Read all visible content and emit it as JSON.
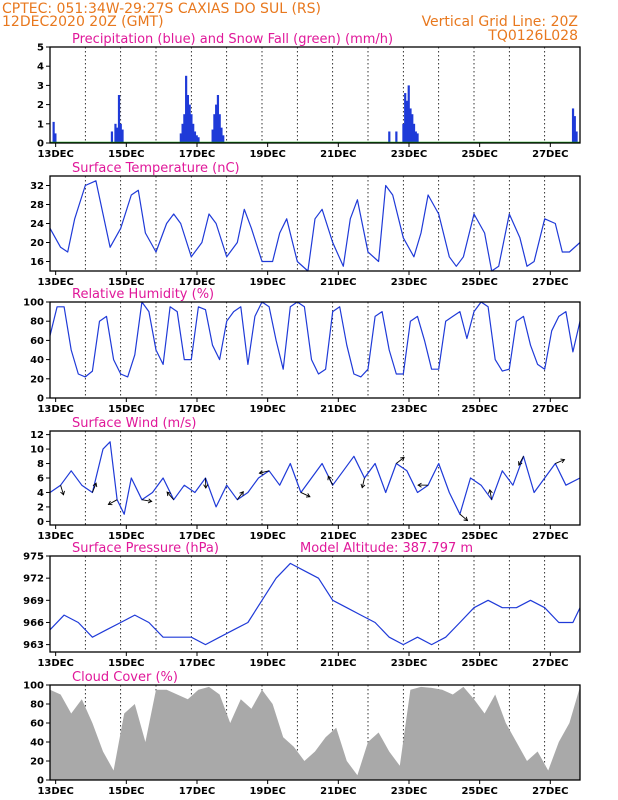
{
  "header": {
    "line1": "CPTEC:  051:34W-29:27S  CAXIAS DO SUL (RS)",
    "line2_left": "12DEC2020 20Z (GMT)",
    "line2_right": "Vertical Grid Line: 20Z",
    "line3_right": "TQ0126L028"
  },
  "colors": {
    "header": "#e8781e",
    "title": "#e0189a",
    "series_line": "#1f3ad8",
    "precip": "#1f3ad8",
    "snow": "#18a018",
    "cloud": "#a9a9a9"
  },
  "chart_data": [
    {
      "type": "bar",
      "title": "Precipitation (blue) and Snow Fall (green) (mm/h)",
      "x_ticks": [
        "13DEC",
        "15DEC",
        "17DEC",
        "19DEC",
        "21DEC",
        "23DEC",
        "25DEC",
        "27DEC"
      ],
      "xlim": [
        "12DEC2020 20Z",
        "27DEC2020 20Z"
      ],
      "ylim": [
        0,
        5
      ],
      "y_ticks": [
        "0",
        "1",
        "2",
        "3",
        "4",
        "5"
      ],
      "series": [
        {
          "name": "Precipitation",
          "x_day": [
            0.1,
            0.15,
            1.75,
            1.85,
            1.9,
            1.95,
            2.0,
            2.05,
            3.7,
            3.75,
            3.8,
            3.85,
            3.9,
            3.95,
            4.0,
            4.05,
            4.1,
            4.15,
            4.2,
            4.6,
            4.65,
            4.7,
            4.75,
            4.8,
            4.85,
            4.9,
            9.6,
            9.8,
            10.0,
            10.05,
            10.1,
            10.15,
            10.2,
            10.25,
            10.3,
            10.35,
            10.4,
            14.8,
            14.85,
            14.9
          ],
          "values": [
            1.1,
            0.5,
            0.6,
            1.0,
            0.8,
            2.5,
            1.0,
            0.7,
            0.5,
            1.0,
            1.5,
            3.5,
            2.5,
            2.0,
            1.5,
            1.0,
            0.6,
            0.4,
            0.3,
            0.7,
            1.5,
            2.0,
            2.5,
            1.5,
            0.8,
            0.4,
            0.6,
            0.6,
            1.0,
            2.6,
            2.2,
            3.0,
            1.8,
            1.5,
            1.0,
            0.6,
            0.5,
            1.8,
            1.4,
            0.6
          ]
        },
        {
          "name": "Snow Fall",
          "x_day": [
            1.3,
            6.0,
            9.1,
            12.5
          ],
          "values": [
            0.05,
            0.05,
            0.05,
            0.05
          ]
        }
      ]
    },
    {
      "type": "line",
      "title": "Surface Temperature (nC)",
      "x_ticks": [
        "13DEC",
        "15DEC",
        "17DEC",
        "19DEC",
        "21DEC",
        "23DEC",
        "25DEC",
        "27DEC"
      ],
      "ylim": [
        14,
        34
      ],
      "y_ticks": [
        "16",
        "20",
        "24",
        "28",
        "32"
      ],
      "x_day": [
        0,
        0.3,
        0.5,
        0.7,
        1.0,
        1.3,
        1.5,
        1.7,
        2.0,
        2.3,
        2.5,
        2.7,
        3.0,
        3.3,
        3.5,
        3.7,
        4.0,
        4.3,
        4.5,
        4.7,
        5.0,
        5.3,
        5.5,
        5.7,
        6.0,
        6.3,
        6.5,
        6.7,
        7.0,
        7.3,
        7.5,
        7.7,
        8.0,
        8.3,
        8.5,
        8.7,
        9.0,
        9.3,
        9.5,
        9.7,
        10.0,
        10.3,
        10.5,
        10.7,
        11.0,
        11.3,
        11.5,
        11.7,
        12.0,
        12.3,
        12.5,
        12.7,
        13.0,
        13.3,
        13.5,
        13.7,
        14.0,
        14.3,
        14.5,
        14.7,
        15.0
      ],
      "values": [
        23,
        19,
        18,
        25,
        32,
        33,
        26,
        19,
        23,
        30,
        31,
        22,
        18,
        24,
        26,
        24,
        17,
        20,
        26,
        24,
        17,
        20,
        27,
        23,
        16,
        16,
        22,
        25,
        16,
        14,
        25,
        27,
        20,
        15,
        25,
        29,
        18,
        16,
        32,
        30,
        21,
        17,
        22,
        30,
        26,
        17,
        15,
        17,
        26,
        22,
        14,
        15,
        26,
        21,
        15,
        16,
        25,
        24,
        18,
        18,
        20
      ]
    },
    {
      "type": "line",
      "title": "Relative Humidity (%)",
      "x_ticks": [
        "13DEC",
        "15DEC",
        "17DEC",
        "19DEC",
        "21DEC",
        "23DEC",
        "25DEC",
        "27DEC"
      ],
      "ylim": [
        0,
        100
      ],
      "y_ticks": [
        "0",
        "20",
        "40",
        "60",
        "80",
        "100"
      ],
      "x_day": [
        0,
        0.2,
        0.4,
        0.6,
        0.8,
        1.0,
        1.2,
        1.4,
        1.6,
        1.8,
        2.0,
        2.2,
        2.4,
        2.6,
        2.8,
        3.0,
        3.2,
        3.4,
        3.6,
        3.8,
        4.0,
        4.2,
        4.4,
        4.6,
        4.8,
        5.0,
        5.2,
        5.4,
        5.6,
        5.8,
        6.0,
        6.2,
        6.4,
        6.6,
        6.8,
        7.0,
        7.2,
        7.4,
        7.6,
        7.8,
        8.0,
        8.2,
        8.4,
        8.6,
        8.8,
        9.0,
        9.2,
        9.4,
        9.6,
        9.8,
        10.0,
        10.2,
        10.4,
        10.6,
        10.8,
        11.0,
        11.2,
        11.4,
        11.6,
        11.8,
        12.0,
        12.2,
        12.4,
        12.6,
        12.8,
        13.0,
        13.2,
        13.4,
        13.6,
        13.8,
        14.0,
        14.2,
        14.4,
        14.6,
        14.8,
        15.0
      ],
      "values": [
        65,
        95,
        95,
        50,
        25,
        22,
        28,
        80,
        85,
        40,
        25,
        22,
        45,
        100,
        90,
        50,
        35,
        95,
        90,
        40,
        40,
        95,
        92,
        55,
        40,
        80,
        90,
        95,
        35,
        85,
        100,
        95,
        60,
        30,
        95,
        100,
        95,
        40,
        25,
        30,
        90,
        95,
        55,
        25,
        22,
        30,
        85,
        90,
        50,
        25,
        25,
        80,
        85,
        60,
        30,
        30,
        80,
        85,
        90,
        62,
        90,
        100,
        95,
        40,
        28,
        30,
        80,
        85,
        55,
        35,
        30,
        70,
        85,
        90,
        48,
        80
      ]
    },
    {
      "type": "line",
      "title": "Surface Wind (m/s)",
      "x_ticks": [
        "13DEC",
        "15DEC",
        "17DEC",
        "19DEC",
        "21DEC",
        "23DEC",
        "25DEC",
        "27DEC"
      ],
      "ylim": [
        -0.5,
        12.5
      ],
      "y_ticks": [
        "0",
        "2",
        "4",
        "6",
        "8",
        "10",
        "12"
      ],
      "x_day": [
        0,
        0.3,
        0.6,
        0.9,
        1.2,
        1.5,
        1.7,
        1.9,
        2.1,
        2.3,
        2.6,
        2.9,
        3.2,
        3.5,
        3.8,
        4.1,
        4.4,
        4.7,
        5.0,
        5.3,
        5.6,
        5.9,
        6.2,
        6.5,
        6.8,
        7.1,
        7.4,
        7.7,
        8.0,
        8.3,
        8.6,
        8.9,
        9.2,
        9.5,
        9.8,
        10.1,
        10.4,
        10.7,
        11.0,
        11.3,
        11.6,
        11.9,
        12.2,
        12.5,
        12.8,
        13.1,
        13.4,
        13.7,
        14.0,
        14.3,
        14.6,
        15.0
      ],
      "values": [
        4,
        5,
        7,
        5,
        4,
        10,
        11,
        3,
        1,
        6,
        3,
        4,
        6,
        3,
        5,
        4,
        6,
        2,
        5,
        3,
        4,
        6,
        7,
        5,
        8,
        4,
        6,
        8,
        5,
        7,
        9,
        6,
        8,
        4,
        8,
        7,
        4,
        5,
        8,
        4,
        1,
        6,
        5,
        3,
        7,
        5,
        9,
        4,
        6,
        8,
        5,
        6
      ]
    },
    {
      "type": "line",
      "title": "Surface Pressure (hPa)",
      "annotation": "Model Altitude: 387.797  m",
      "x_ticks": [
        "13DEC",
        "15DEC",
        "17DEC",
        "19DEC",
        "21DEC",
        "23DEC",
        "25DEC",
        "27DEC"
      ],
      "ylim": [
        962,
        975
      ],
      "y_ticks": [
        "963",
        "966",
        "969",
        "972",
        "975"
      ],
      "x_day": [
        0,
        0.4,
        0.8,
        1.2,
        1.6,
        2.0,
        2.4,
        2.8,
        3.2,
        3.6,
        4.0,
        4.4,
        4.8,
        5.2,
        5.6,
        6.0,
        6.4,
        6.8,
        7.2,
        7.6,
        8.0,
        8.4,
        8.8,
        9.2,
        9.6,
        10.0,
        10.4,
        10.8,
        11.2,
        11.6,
        12.0,
        12.4,
        12.8,
        13.2,
        13.6,
        14.0,
        14.4,
        14.8,
        15.0
      ],
      "values": [
        965,
        967,
        966,
        964,
        965,
        966,
        967,
        966,
        964,
        964,
        964,
        963,
        964,
        965,
        966,
        969,
        972,
        974,
        973,
        972,
        969,
        968,
        967,
        966,
        964,
        963,
        964,
        963,
        964,
        966,
        968,
        969,
        968,
        968,
        969,
        968,
        966,
        966,
        968
      ]
    },
    {
      "type": "area",
      "title": "Cloud Cover (%)",
      "x_ticks": [
        "13DEC",
        "15DEC",
        "17DEC",
        "19DEC",
        "21DEC",
        "23DEC",
        "25DEC",
        "27DEC"
      ],
      "ylim": [
        0,
        100
      ],
      "y_ticks": [
        "0",
        "20",
        "40",
        "60",
        "80",
        "100"
      ],
      "x_day": [
        0,
        0.3,
        0.6,
        0.9,
        1.2,
        1.5,
        1.8,
        2.1,
        2.4,
        2.7,
        3.0,
        3.3,
        3.6,
        3.9,
        4.2,
        4.5,
        4.8,
        5.1,
        5.4,
        5.7,
        6.0,
        6.3,
        6.6,
        6.9,
        7.2,
        7.5,
        7.8,
        8.1,
        8.4,
        8.7,
        9.0,
        9.3,
        9.6,
        9.9,
        10.2,
        10.5,
        10.8,
        11.1,
        11.4,
        11.7,
        12.0,
        12.3,
        12.6,
        12.9,
        13.2,
        13.5,
        13.8,
        14.1,
        14.4,
        14.7,
        15.0
      ],
      "values": [
        95,
        90,
        70,
        85,
        60,
        30,
        10,
        70,
        80,
        40,
        95,
        95,
        90,
        85,
        95,
        98,
        90,
        60,
        85,
        75,
        95,
        80,
        45,
        35,
        20,
        30,
        45,
        55,
        20,
        5,
        40,
        50,
        30,
        15,
        95,
        98,
        97,
        95,
        90,
        98,
        85,
        70,
        90,
        60,
        40,
        20,
        30,
        10,
        40,
        60,
        98
      ]
    }
  ]
}
